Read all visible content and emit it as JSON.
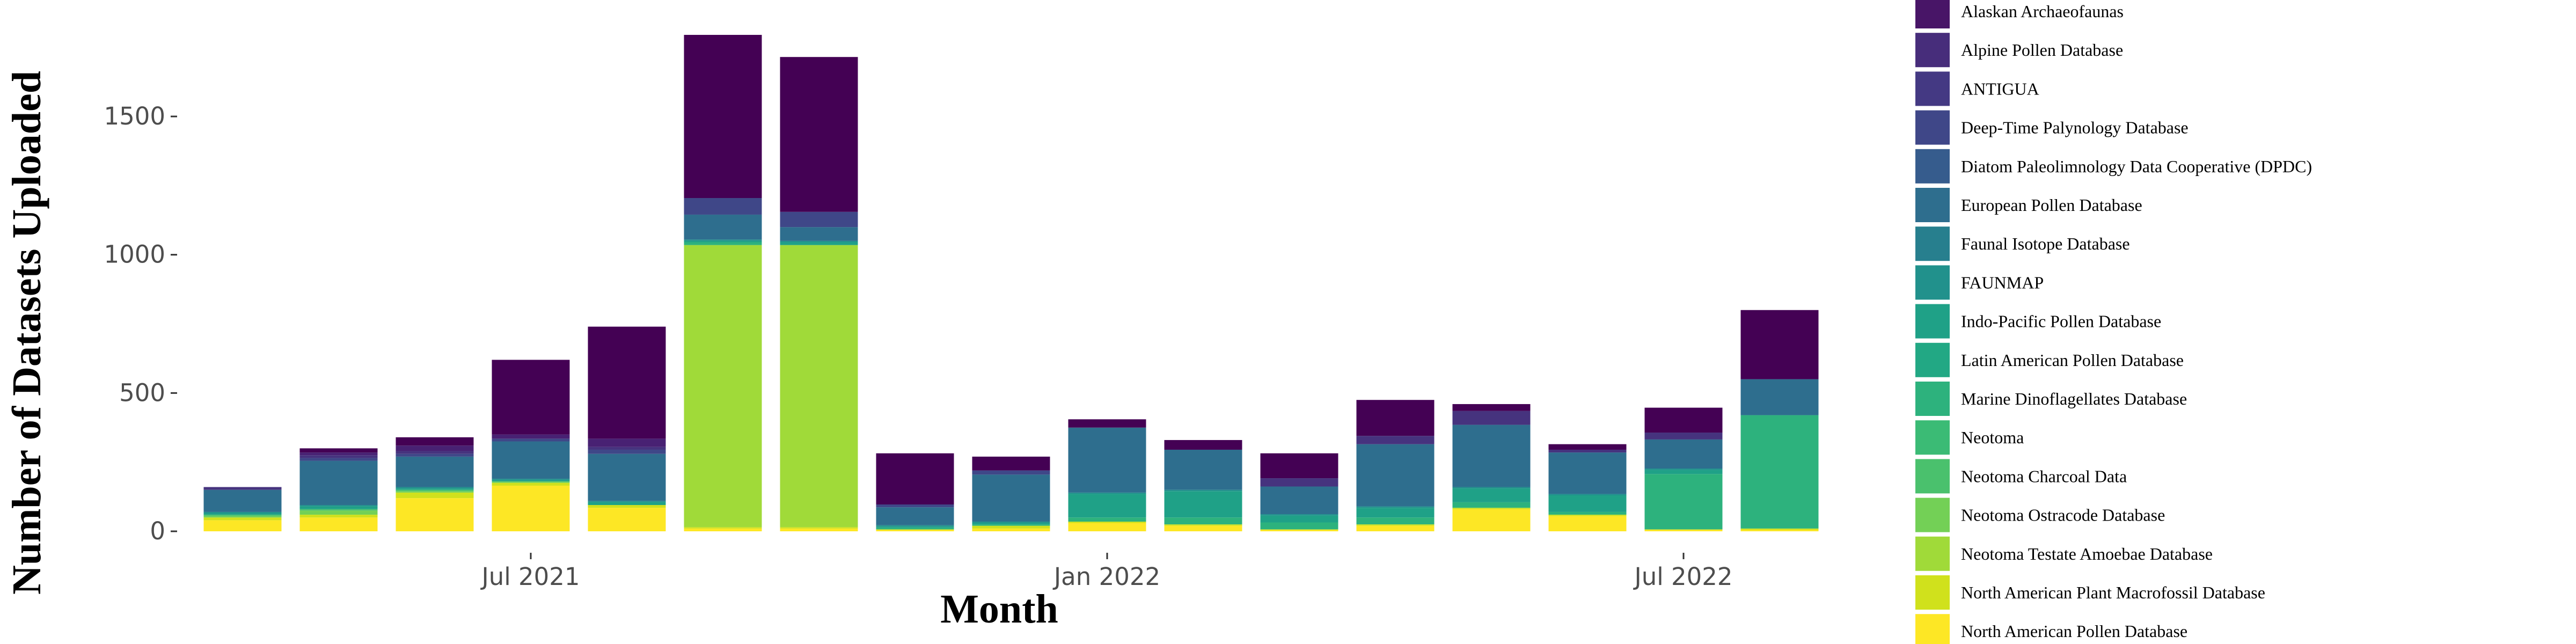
{
  "chart_data": {
    "type": "bar",
    "stacked": true,
    "title": "",
    "xlabel": "Month",
    "ylabel": "Number of Datasets Uploaded",
    "ylim": [
      0,
      1900
    ],
    "yticks": [
      0,
      500,
      1000,
      1500
    ],
    "ytick_labels": [
      "0",
      "500",
      "1000",
      "1500"
    ],
    "xticks": [
      {
        "label": "Jul 2021",
        "month": "2021-07"
      },
      {
        "label": "Jan 2022",
        "month": "2022-01"
      },
      {
        "label": "Jul 2022",
        "month": "2022-07"
      }
    ],
    "grid": false,
    "legend_position": "right",
    "months": [
      "2021-04",
      "2021-05",
      "2021-06",
      "2021-07",
      "2021-08",
      "2021-09",
      "2021-10",
      "2021-11",
      "2021-12",
      "2022-01",
      "2022-02",
      "2022-03",
      "2022-04",
      "2022-05",
      "2022-06",
      "2022-07",
      "2022-08"
    ],
    "series": [
      {
        "name": "North American Pollen Database",
        "color": "#fde725",
        "values": [
          40,
          50,
          120,
          165,
          85,
          10,
          10,
          5,
          10,
          30,
          20,
          5,
          20,
          80,
          55,
          5,
          5
        ]
      },
      {
        "name": "North American Plant Macrofossil Database",
        "color": "#d0e11c",
        "values": [
          10,
          10,
          20,
          10,
          10,
          5,
          5,
          2,
          10,
          5,
          5,
          2,
          5,
          5,
          5,
          2,
          5
        ]
      },
      {
        "name": "Neotoma Testate Amoebae Database",
        "color": "#a0da39",
        "values": [
          0,
          0,
          0,
          0,
          0,
          1020,
          1020,
          0,
          0,
          0,
          0,
          0,
          0,
          0,
          0,
          0,
          0
        ]
      },
      {
        "name": "Neotoma Ostracode Database",
        "color": "#73d056",
        "values": [
          5,
          15,
          5,
          5,
          0,
          0,
          0,
          0,
          0,
          0,
          0,
          0,
          0,
          0,
          0,
          0,
          0
        ]
      },
      {
        "name": "Neotoma Charcoal Data",
        "color": "#4ac16d",
        "values": [
          5,
          5,
          5,
          0,
          0,
          0,
          0,
          0,
          0,
          0,
          0,
          0,
          0,
          0,
          0,
          0,
          0
        ]
      },
      {
        "name": "Neotoma",
        "color": "#2db27d",
        "values": [
          0,
          0,
          0,
          0,
          0,
          10,
          0,
          5,
          5,
          15,
          25,
          25,
          25,
          20,
          10,
          200,
          410
        ]
      },
      {
        "name": "Marine Dinoflagellates Database",
        "color": "#1fa187",
        "values": [
          5,
          10,
          5,
          5,
          10,
          5,
          10,
          5,
          5,
          85,
          95,
          25,
          35,
          50,
          60,
          15,
          0
        ]
      },
      {
        "name": "Latin American Pollen Database",
        "color": "#21918c",
        "values": [
          5,
          5,
          5,
          5,
          5,
          5,
          5,
          5,
          5,
          5,
          5,
          5,
          5,
          5,
          5,
          5,
          0
        ]
      },
      {
        "name": "Indo-Pacific Pollen Database",
        "color": "#277f8e",
        "values": [
          0,
          0,
          0,
          0,
          0,
          0,
          0,
          0,
          0,
          0,
          0,
          0,
          0,
          0,
          0,
          0,
          0
        ]
      },
      {
        "name": "FAUNMAP",
        "color": "#2e6e8e",
        "values": [
          80,
          160,
          110,
          135,
          170,
          90,
          50,
          65,
          170,
          235,
          145,
          100,
          225,
          225,
          150,
          105,
          130
        ]
      },
      {
        "name": "Faunal Isotope Database",
        "color": "#365c8d",
        "values": [
          0,
          0,
          0,
          0,
          0,
          0,
          0,
          0,
          0,
          0,
          0,
          0,
          0,
          0,
          0,
          0,
          0
        ]
      },
      {
        "name": "European Pollen Database",
        "color": "#3f4788",
        "values": [
          0,
          10,
          10,
          10,
          15,
          60,
          55,
          10,
          15,
          0,
          0,
          0,
          0,
          0,
          0,
          0,
          0
        ]
      },
      {
        "name": "Diatom Paleolimnology Data Cooperative (DPDC)",
        "color": "#46337e",
        "values": [
          10,
          10,
          10,
          0,
          10,
          0,
          0,
          0,
          0,
          0,
          0,
          30,
          30,
          50,
          10,
          25,
          0
        ]
      },
      {
        "name": "Deep-Time Palynology Database",
        "color": "#482173",
        "values": [
          0,
          10,
          20,
          15,
          30,
          0,
          0,
          0,
          0,
          0,
          0,
          0,
          0,
          0,
          0,
          0,
          0
        ]
      },
      {
        "name": "Alpine Pollen Database",
        "color": "#472d7b",
        "values": [
          0,
          0,
          0,
          0,
          0,
          0,
          0,
          0,
          0,
          0,
          0,
          0,
          0,
          0,
          0,
          0,
          0
        ]
      },
      {
        "name": "ANTIGUA",
        "color": "#443983",
        "values": [
          0,
          0,
          0,
          0,
          0,
          0,
          0,
          0,
          0,
          0,
          0,
          0,
          0,
          0,
          0,
          0,
          0
        ]
      },
      {
        "name": "Alaskan Archaeofaunas",
        "color": "#440154",
        "values": [
          0,
          15,
          30,
          270,
          405,
          590,
          560,
          185,
          50,
          30,
          35,
          90,
          130,
          25,
          20,
          90,
          250
        ]
      }
    ],
    "legend_entries": [
      {
        "name": "Alaskan Archaeofaunas",
        "color": "#481567"
      },
      {
        "name": "Alpine Pollen Database",
        "color": "#472d7b"
      },
      {
        "name": "ANTIGUA",
        "color": "#443983"
      },
      {
        "name": "Deep-Time Palynology Database",
        "color": "#3f4788"
      },
      {
        "name": "Diatom Paleolimnology Data Cooperative (DPDC)",
        "color": "#365c8d"
      },
      {
        "name": "European Pollen Database",
        "color": "#2e6e8e"
      },
      {
        "name": "Faunal Isotope Database",
        "color": "#277f8e"
      },
      {
        "name": "FAUNMAP",
        "color": "#21918c"
      },
      {
        "name": "Indo-Pacific Pollen Database",
        "color": "#1fa187"
      },
      {
        "name": "Latin American Pollen Database",
        "color": "#22a884"
      },
      {
        "name": "Marine Dinoflagellates Database",
        "color": "#2db27d"
      },
      {
        "name": "Neotoma",
        "color": "#3bbb75"
      },
      {
        "name": "Neotoma Charcoal Data",
        "color": "#4ac16d"
      },
      {
        "name": "Neotoma Ostracode Database",
        "color": "#73d056"
      },
      {
        "name": "Neotoma Testate Amoebae Database",
        "color": "#a0da39"
      },
      {
        "name": "North American Plant Macrofossil Database",
        "color": "#d0e11c"
      },
      {
        "name": "North American Pollen Database",
        "color": "#fde725"
      }
    ]
  }
}
